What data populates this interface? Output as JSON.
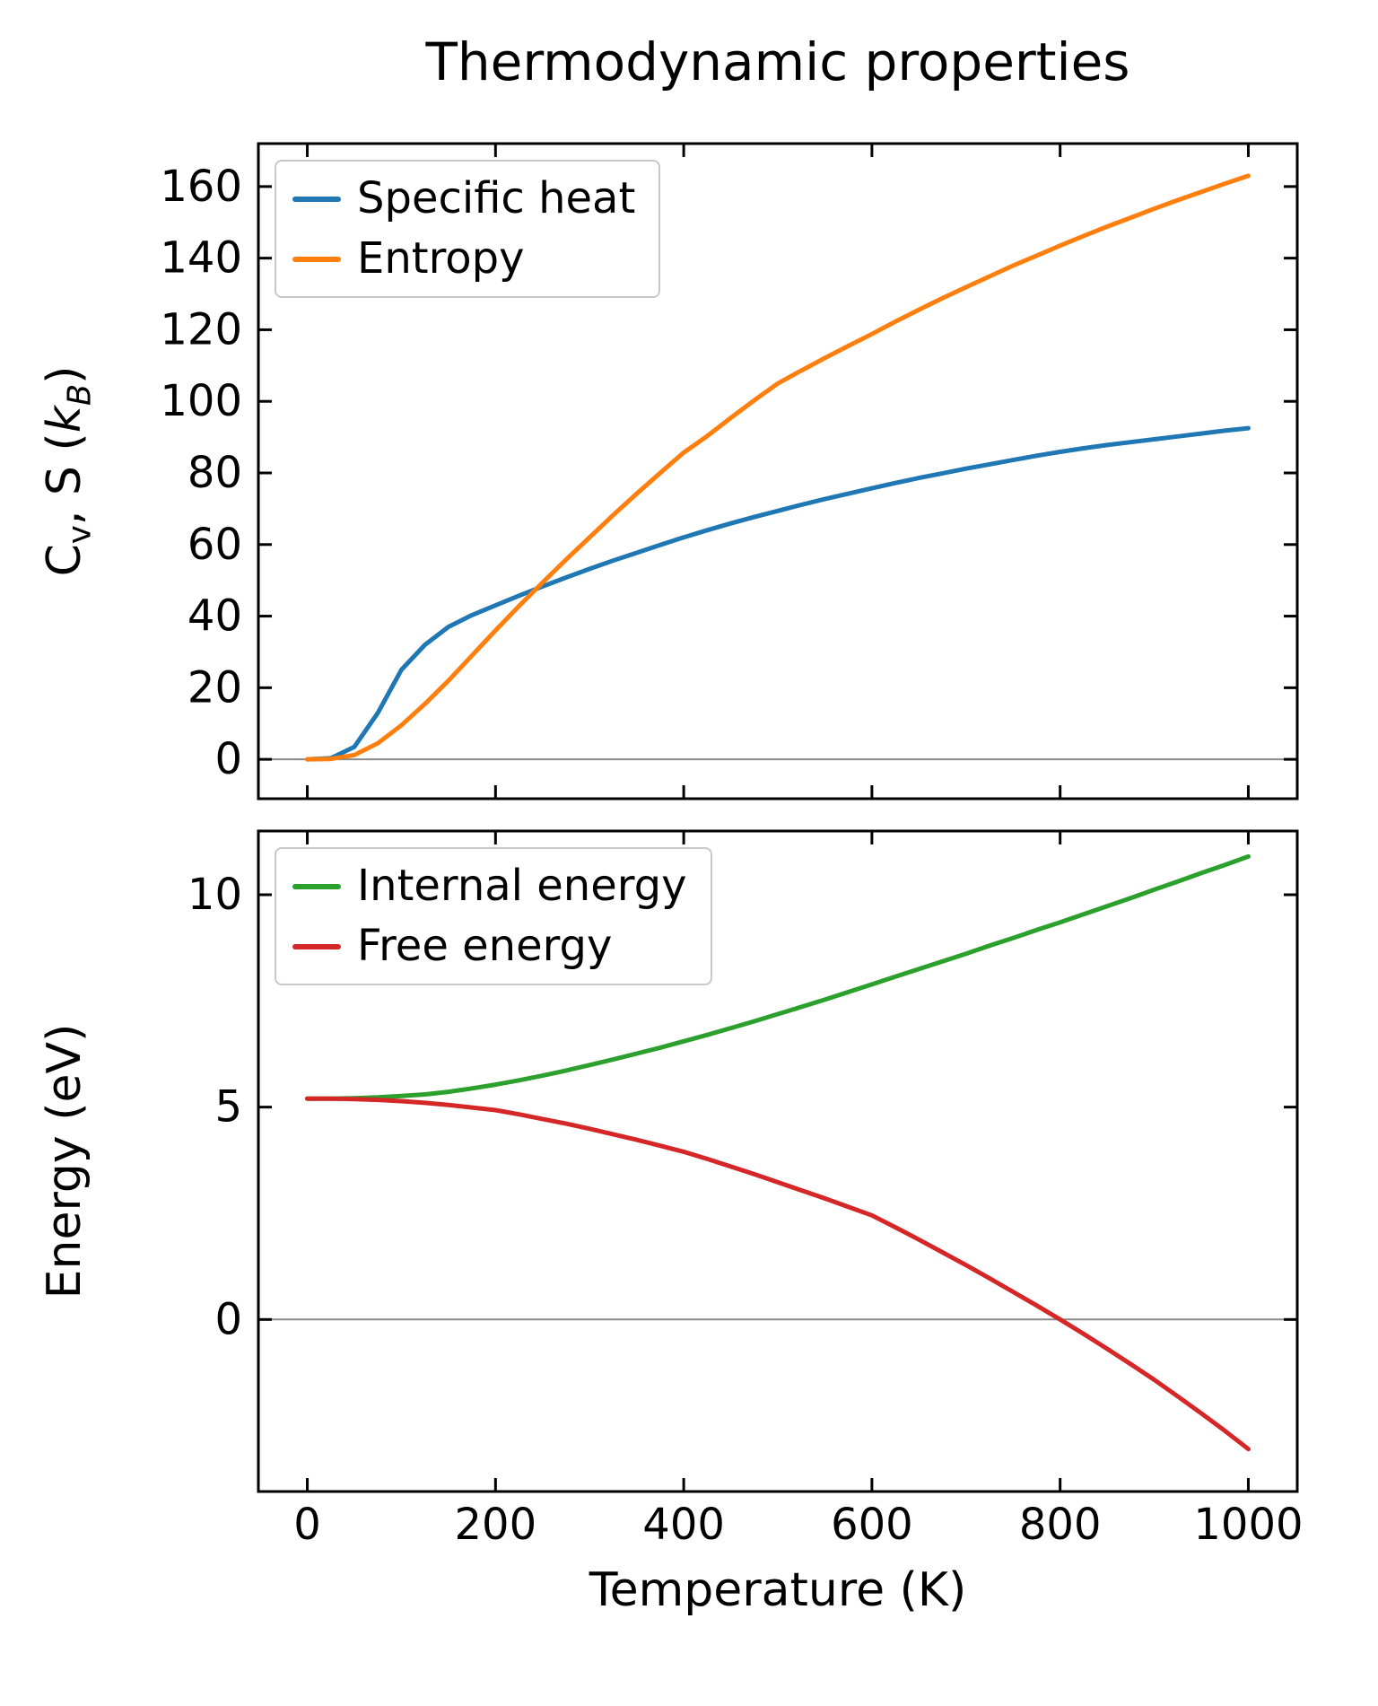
{
  "figure": {
    "title": "Thermodynamic properties",
    "xlabel": "Temperature (K)",
    "background": "#ffffff"
  },
  "colors": {
    "spine": "#000000",
    "zero_line": "#8a8a8a",
    "legend_border": "#c8c8c8",
    "specific_heat": "#1f77b4",
    "entropy": "#ff7f0e",
    "internal_energy": "#2ca02c",
    "free_energy": "#d62728"
  },
  "ylabel_top_parts": {
    "c": "C",
    "v_sub": "v",
    "mid": ", S (",
    "k": "k",
    "b_sub": "B",
    "close": ")"
  },
  "chart_data": [
    {
      "type": "line",
      "title": "Thermodynamic properties",
      "xlabel": "",
      "ylabel": "Cv, S (kB)",
      "xlim": [
        -52,
        1052
      ],
      "ylim": [
        -11,
        172
      ],
      "xticks": [
        0,
        200,
        400,
        600,
        800,
        1000
      ],
      "yticks": [
        0,
        20,
        40,
        60,
        80,
        100,
        120,
        140,
        160
      ],
      "grid": false,
      "zero_line": true,
      "legend_position": "upper left",
      "x": [
        0,
        25,
        50,
        75,
        100,
        125,
        150,
        175,
        200,
        225,
        250,
        275,
        300,
        325,
        350,
        375,
        400,
        425,
        450,
        475,
        500,
        525,
        550,
        575,
        600,
        625,
        650,
        675,
        700,
        725,
        750,
        775,
        800,
        825,
        850,
        875,
        900,
        925,
        950,
        975,
        1000
      ],
      "series": [
        {
          "name": "Specific heat",
          "color": "#1f77b4",
          "values": [
            0,
            0.3,
            3.5,
            13,
            25,
            32,
            37,
            40.3,
            43,
            45.7,
            48.3,
            50.8,
            53.2,
            55.5,
            57.7,
            59.9,
            62,
            64,
            65.9,
            67.7,
            69.4,
            71.1,
            72.7,
            74.2,
            75.7,
            77.2,
            78.6,
            79.9,
            81.2,
            82.4,
            83.6,
            84.8,
            85.9,
            86.9,
            87.8,
            88.6,
            89.4,
            90.2,
            91,
            91.8,
            92.5
          ]
        },
        {
          "name": "Entropy",
          "color": "#ff7f0e",
          "values": [
            0,
            0.1,
            1.2,
            4.5,
            9.5,
            15.5,
            22,
            29,
            36,
            42.8,
            49.4,
            55.8,
            62,
            68.2,
            74.2,
            80,
            85.7,
            90.3,
            95.4,
            100.3,
            105,
            108.6,
            112.1,
            115.5,
            118.8,
            122.3,
            125.6,
            128.8,
            131.9,
            134.9,
            137.9,
            140.7,
            143.5,
            146.2,
            148.8,
            151.3,
            153.8,
            156.2,
            158.5,
            160.8,
            163
          ]
        }
      ]
    },
    {
      "type": "line",
      "title": "",
      "xlabel": "Temperature (K)",
      "ylabel": "Energy (eV)",
      "xlim": [
        -52,
        1052
      ],
      "ylim": [
        -4.05,
        11.5
      ],
      "xticks": [
        0,
        200,
        400,
        600,
        800,
        1000
      ],
      "yticks": [
        0,
        5,
        10
      ],
      "grid": false,
      "zero_line": true,
      "legend_position": "upper left",
      "x": [
        0,
        25,
        50,
        75,
        100,
        125,
        150,
        175,
        200,
        225,
        250,
        275,
        300,
        325,
        350,
        375,
        400,
        425,
        450,
        475,
        500,
        525,
        550,
        575,
        600,
        625,
        650,
        675,
        700,
        725,
        750,
        775,
        800,
        825,
        850,
        875,
        900,
        925,
        950,
        975,
        1000
      ],
      "series": [
        {
          "name": "Internal energy",
          "color": "#2ca02c",
          "values": [
            5.2,
            5.2,
            5.21,
            5.23,
            5.26,
            5.3,
            5.36,
            5.44,
            5.53,
            5.63,
            5.74,
            5.86,
            5.99,
            6.12,
            6.26,
            6.4,
            6.55,
            6.7,
            6.86,
            7.02,
            7.19,
            7.36,
            7.53,
            7.71,
            7.89,
            8.07,
            8.25,
            8.43,
            8.61,
            8.8,
            8.98,
            9.17,
            9.35,
            9.54,
            9.73,
            9.92,
            10.12,
            10.31,
            10.51,
            10.7,
            10.9
          ]
        },
        {
          "name": "Free energy",
          "color": "#d62728",
          "values": [
            5.2,
            5.2,
            5.19,
            5.17,
            5.14,
            5.1,
            5.05,
            4.99,
            4.93,
            4.83,
            4.72,
            4.61,
            4.49,
            4.36,
            4.23,
            4.09,
            3.95,
            3.78,
            3.6,
            3.42,
            3.23,
            3.04,
            2.85,
            2.65,
            2.45,
            2.17,
            1.88,
            1.58,
            1.28,
            0.97,
            0.65,
            0.33,
            0,
            -0.34,
            -0.69,
            -1.05,
            -1.42,
            -1.81,
            -2.21,
            -2.62,
            -3.05
          ]
        }
      ]
    }
  ]
}
